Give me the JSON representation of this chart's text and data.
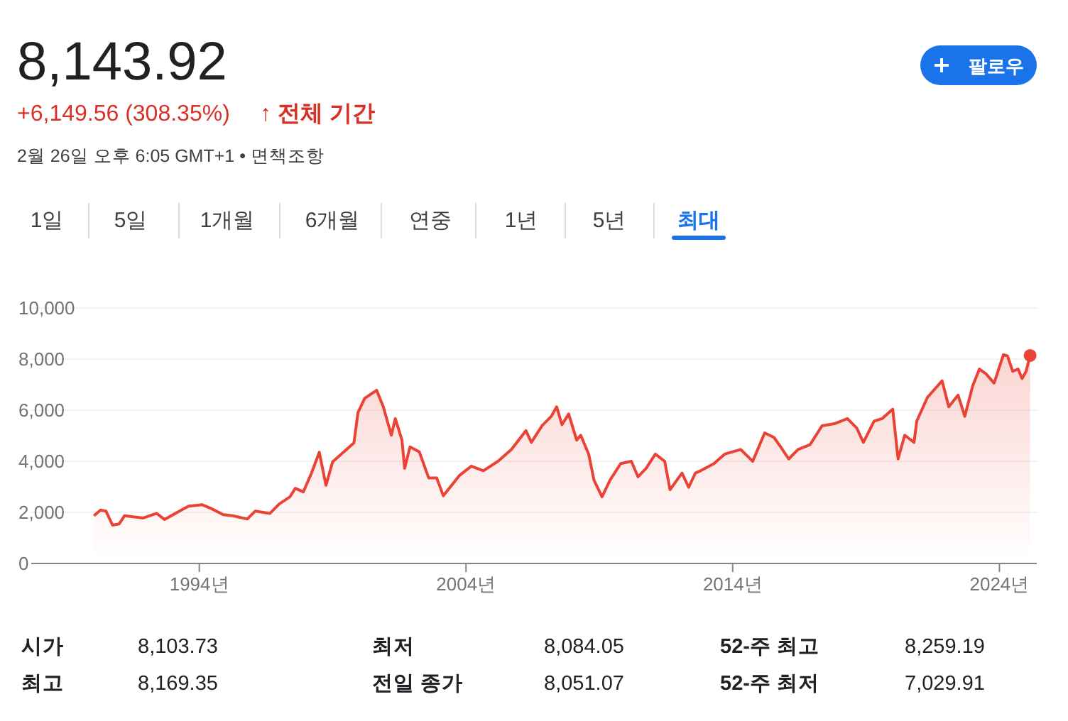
{
  "chart_data": {
    "type": "area",
    "title": "8,143.92",
    "subtitle": "+6,149.56 (308.35%)",
    "annotations": [
      "↑ 전체 기간",
      "2월 26일 오후 6:05 GMT+1 • 면책조항",
      "팔로우",
      "1일",
      "5일",
      "1개월",
      "6개월",
      "연중",
      "1년",
      "5년",
      "최대",
      "시가",
      "8,103.73",
      "최저",
      "8,084.05",
      "52-주 최고",
      "8,259.19",
      "최고",
      "8,169.35",
      "전일 종가",
      "8,051.07",
      "52-주 최저",
      "7,029.91"
    ],
    "xlim": [
      1987.7,
      2025.4
    ],
    "ylim": [
      0,
      10000
    ],
    "xticks": [
      {
        "value": 1994,
        "label": "1994년"
      },
      {
        "value": 2004,
        "label": "2004년"
      },
      {
        "value": 2014,
        "label": "2014년"
      },
      {
        "value": 2024,
        "label": "2024년"
      }
    ],
    "yticks": [
      {
        "value": 0,
        "label": "0"
      },
      {
        "value": 2000,
        "label": "2,000"
      },
      {
        "value": 4000,
        "label": "4,000"
      },
      {
        "value": 6000,
        "label": "6,000"
      },
      {
        "value": 8000,
        "label": "8,000"
      },
      {
        "value": 10000,
        "label": "10,000"
      }
    ],
    "grid": "y",
    "series": [
      {
        "color": "#ea4335",
        "x": [
          1990.05,
          1990.3,
          1990.5,
          1990.75,
          1991.0,
          1991.2,
          1991.9,
          1992.4,
          1992.7,
          1993.1,
          1993.6,
          1994.1,
          1994.45,
          1994.9,
          1995.25,
          1995.8,
          1996.1,
          1996.65,
          1997.0,
          1997.4,
          1997.6,
          1997.9,
          1998.2,
          1998.5,
          1998.75,
          1999.0,
          1999.3,
          1999.8,
          1999.95,
          2000.2,
          2000.65,
          2000.9,
          2001.2,
          2001.35,
          2001.6,
          2001.7,
          2001.9,
          2002.25,
          2002.6,
          2002.9,
          2003.15,
          2003.75,
          2004.2,
          2004.65,
          2005.2,
          2005.7,
          2006.25,
          2006.45,
          2006.85,
          2007.2,
          2007.4,
          2007.6,
          2007.85,
          2008.15,
          2008.3,
          2008.6,
          2008.8,
          2009.1,
          2009.4,
          2009.8,
          2010.2,
          2010.45,
          2010.75,
          2011.1,
          2011.45,
          2011.65,
          2012.1,
          2012.35,
          2012.6,
          2012.8,
          2013.3,
          2013.7,
          2014.3,
          2014.75,
          2015.2,
          2015.55,
          2015.8,
          2016.1,
          2016.45,
          2016.9,
          2017.35,
          2017.85,
          2018.3,
          2018.65,
          2018.9,
          2019.3,
          2019.6,
          2020.0,
          2020.2,
          2020.45,
          2020.8,
          2020.9,
          2021.3,
          2021.85,
          2022.1,
          2022.45,
          2022.7,
          2023.0,
          2023.25,
          2023.5,
          2023.8,
          2024.15,
          2024.3,
          2024.5,
          2024.7,
          2024.85,
          2025.0,
          2025.15
        ],
        "values": [
          1870,
          2090,
          2050,
          1500,
          1550,
          1870,
          1780,
          1960,
          1720,
          1960,
          2240,
          2300,
          2150,
          1910,
          1870,
          1740,
          2050,
          1960,
          2330,
          2610,
          2940,
          2800,
          3520,
          4350,
          3060,
          3980,
          4260,
          4720,
          5910,
          6460,
          6780,
          6130,
          5020,
          5670,
          4830,
          3720,
          4560,
          4370,
          3350,
          3350,
          2650,
          3440,
          3810,
          3630,
          4000,
          4460,
          5200,
          4740,
          5390,
          5760,
          6130,
          5430,
          5850,
          4830,
          5020,
          4280,
          3260,
          2610,
          3260,
          3910,
          4000,
          3390,
          3720,
          4280,
          4000,
          2890,
          3540,
          2980,
          3540,
          3630,
          3910,
          4280,
          4460,
          4000,
          5110,
          4930,
          4560,
          4090,
          4460,
          4650,
          5390,
          5480,
          5670,
          5300,
          4740,
          5570,
          5670,
          6040,
          4090,
          5020,
          4740,
          5570,
          6500,
          7150,
          6130,
          6590,
          5760,
          6960,
          7610,
          7420,
          7060,
          8170,
          8130,
          7520,
          7610,
          7240,
          7520,
          8140
        ]
      },
      {
        "type": "scatter",
        "color": "#ea4335",
        "x": [
          2025.15
        ],
        "values": [
          8140
        ]
      }
    ]
  }
}
